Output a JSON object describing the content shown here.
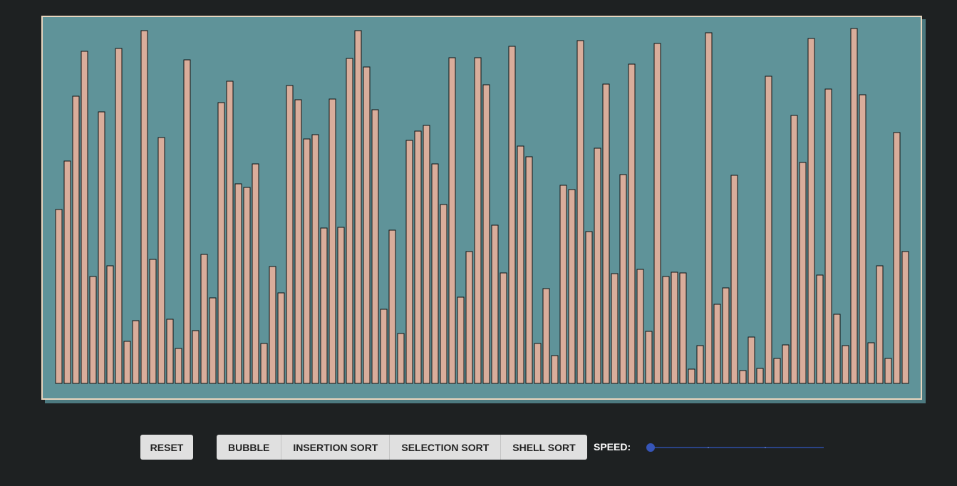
{
  "array": [
    244,
    312,
    403,
    466,
    150,
    381,
    165,
    470,
    59,
    88,
    495,
    174,
    345,
    90,
    49,
    454,
    74,
    181,
    120,
    394,
    424,
    280,
    275,
    308,
    56,
    164,
    127,
    418,
    398,
    343,
    349,
    218,
    399,
    219,
    456,
    495,
    444,
    384,
    104,
    215,
    70,
    341,
    354,
    362,
    308,
    251,
    457,
    121,
    185,
    457,
    419,
    222,
    155,
    473,
    333,
    318,
    56,
    133,
    39,
    278,
    272,
    481,
    213,
    330,
    420,
    154,
    293,
    448,
    160,
    73,
    477,
    150,
    156,
    155,
    20,
    53,
    492,
    111,
    134,
    292,
    18,
    65,
    21,
    431,
    35,
    54,
    376,
    310,
    484,
    152,
    413,
    97,
    53,
    498,
    405,
    57,
    165,
    35,
    352,
    185
  ],
  "controls": {
    "reset": "RESET",
    "algorithms": [
      "BUBBLE",
      "INSERTION SORT",
      "SELECTION SORT",
      "SHELL SORT"
    ],
    "speed_label": "SPEED:"
  }
}
